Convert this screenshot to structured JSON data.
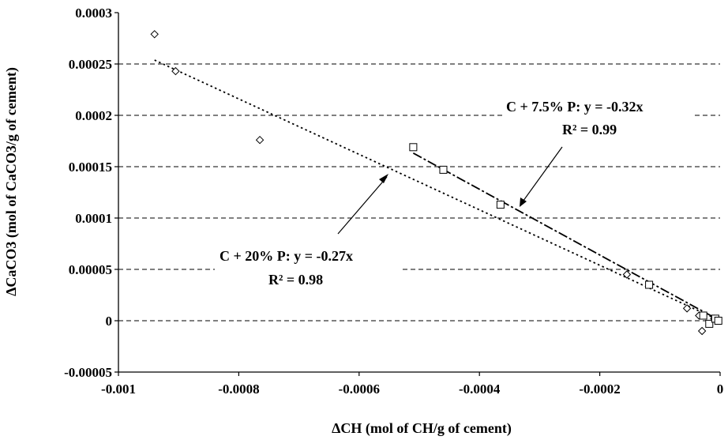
{
  "chart_data": {
    "type": "scatter",
    "xlabel": "ΔCH (mol of CH/g of cement)",
    "ylabel": "ΔCaCO3 (mol of CaCO3/g of cement)",
    "xlim": [
      -0.001,
      0
    ],
    "ylim": [
      -5e-05,
      0.0003
    ],
    "x_ticks": [
      "-0.001",
      "-0.0008",
      "-0.0006",
      "-0.0004",
      "-0.0002",
      "0"
    ],
    "y_ticks": [
      "-0.00005",
      "0",
      "0.00005",
      "0.0001",
      "0.00015",
      "0.0002",
      "0.00025",
      "0.0003"
    ],
    "grid": "horizontal dashed",
    "series": [
      {
        "marker": "diamond",
        "points": [
          {
            "x": -0.00094,
            "y": 0.000279
          },
          {
            "x": -0.000905,
            "y": 0.000243
          },
          {
            "x": -0.000765,
            "y": 0.000176
          },
          {
            "x": -0.000155,
            "y": 4.5e-05
          },
          {
            "x": -5.5e-05,
            "y": 1.2e-05
          },
          {
            "x": -3.5e-05,
            "y": 5e-06
          },
          {
            "x": -3e-05,
            "y": -1e-05
          },
          {
            "x": -1e-05,
            "y": 2e-06
          }
        ],
        "trend": {
          "slope": -0.27,
          "x_from": -0.00094,
          "x_to": 0
        }
      },
      {
        "marker": "square",
        "points": [
          {
            "x": -0.00051,
            "y": 0.000169
          },
          {
            "x": -0.00046,
            "y": 0.000147
          },
          {
            "x": -0.000365,
            "y": 0.000113
          },
          {
            "x": -0.000118,
            "y": 3.5e-05
          },
          {
            "x": -2.8e-05,
            "y": 5e-06
          },
          {
            "x": -1.8e-05,
            "y": -3e-06
          },
          {
            "x": -8e-06,
            "y": 2e-06
          },
          {
            "x": -3e-06,
            "y": 0.0
          }
        ],
        "trend": {
          "slope": -0.32,
          "x_from": -0.00051,
          "x_to": 0
        }
      }
    ],
    "annotations": [
      {
        "line1": "C + 7.5% P: y = -0.32x",
        "line2": "R² = 0.99"
      },
      {
        "line1": "C + 20% P: y = -0.27x",
        "line2": "R² = 0.98"
      }
    ]
  }
}
